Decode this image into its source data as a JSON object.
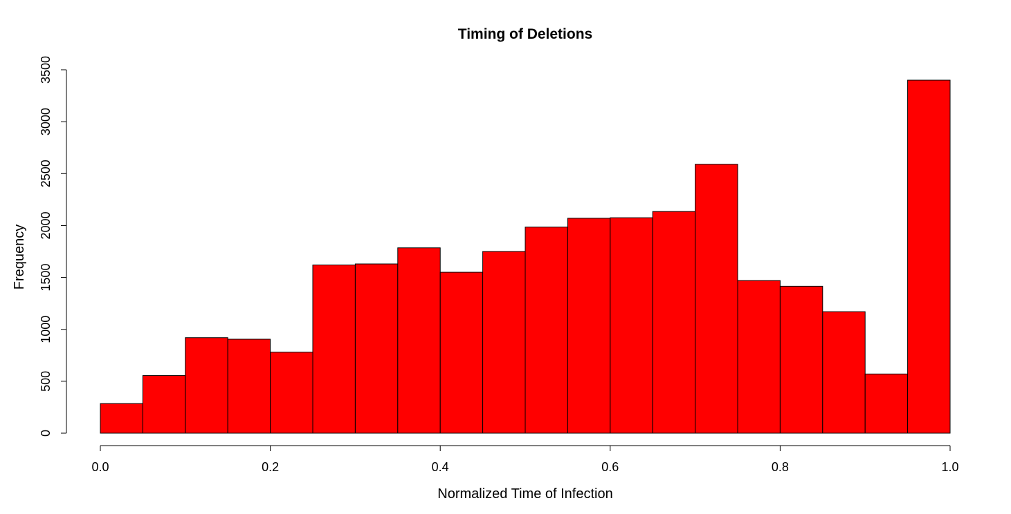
{
  "chart_data": {
    "type": "bar",
    "title": "Timing of Deletions",
    "xlabel": "Normalized Time of Infection",
    "ylabel": "Frequency",
    "bar_color": "#ff0000",
    "border_color": "#000000",
    "bin_edges": [
      0.0,
      0.05,
      0.1,
      0.15,
      0.2,
      0.25,
      0.3,
      0.35,
      0.4,
      0.45,
      0.5,
      0.55,
      0.6,
      0.65,
      0.7,
      0.75,
      0.8,
      0.85,
      0.9,
      0.95,
      1.0
    ],
    "values": [
      285,
      555,
      920,
      905,
      780,
      1620,
      1630,
      1785,
      1550,
      1750,
      1985,
      2070,
      2075,
      2135,
      2590,
      1470,
      1415,
      1170,
      570,
      3400
    ],
    "xlim": [
      0.0,
      1.0
    ],
    "ylim": [
      0,
      3500
    ],
    "x_ticks": [
      0.0,
      0.2,
      0.4,
      0.6,
      0.8,
      1.0
    ],
    "x_tick_labels": [
      "0.0",
      "0.2",
      "0.4",
      "0.6",
      "0.8",
      "1.0"
    ],
    "y_ticks": [
      0,
      500,
      1000,
      1500,
      2000,
      2500,
      3000,
      3500
    ],
    "y_tick_labels": [
      "0",
      "500",
      "1000",
      "1500",
      "2000",
      "2500",
      "3000",
      "3500"
    ],
    "grid": false,
    "legend": "none"
  }
}
